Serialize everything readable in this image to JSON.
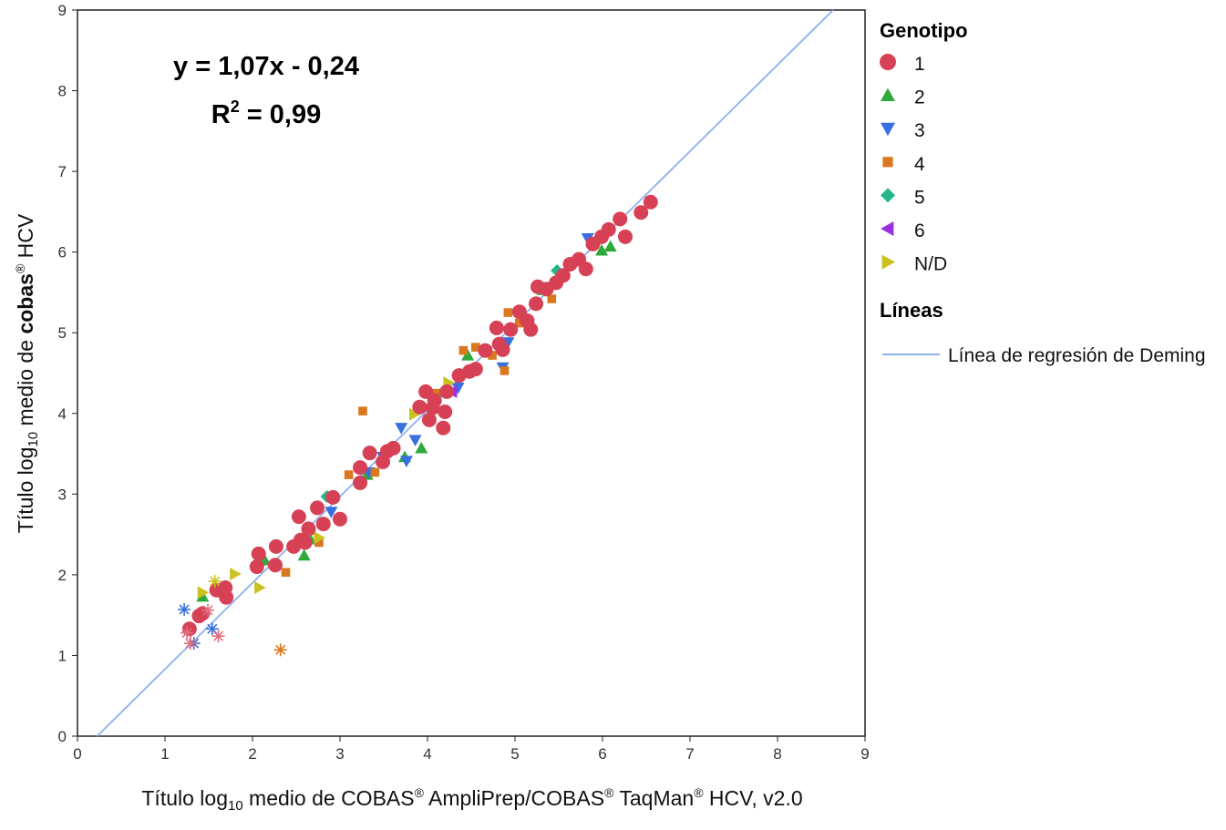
{
  "chart_data": {
    "type": "scatter",
    "xlabel": {
      "pre": "Título log",
      "sub": "10",
      "post": " medio de COBAS",
      "sup1": "®",
      "mid": " AmpliPrep/COBAS",
      "sup2": "®",
      "mid2": " TaqMan",
      "sup3": "®",
      "end": " HCV, v2.0"
    },
    "ylabel": {
      "pre": "Título log",
      "sub": "10",
      "mid": " medio de ",
      "bold": "cobas",
      "sup": "®",
      "end": " HCV"
    },
    "xlim": [
      0,
      9
    ],
    "ylim": [
      0,
      9
    ],
    "xticks": [
      "0",
      "1",
      "2",
      "3",
      "4",
      "5",
      "6",
      "7",
      "8",
      "9"
    ],
    "yticks": [
      "0",
      "1",
      "2",
      "3",
      "4",
      "5",
      "6",
      "7",
      "8",
      "9"
    ],
    "annotations": {
      "equation": "y = 1,07x - 0,24",
      "r2_label": "R",
      "r2_sup": "2",
      "r2_value": " = 0,99"
    },
    "regression": {
      "slope": 1.07,
      "intercept": -0.24,
      "color": "#8fb0ee"
    },
    "legend": {
      "placement": "right",
      "genotype_title": "Genotipo",
      "lines_title": "Líneas",
      "line_label": "Línea de regresión de Deming"
    },
    "series": [
      {
        "name": "1",
        "marker": "circle",
        "color": "#d64155",
        "points": [
          [
            1.28,
            1.33
          ],
          [
            1.39,
            1.49
          ],
          [
            1.43,
            1.52
          ],
          [
            1.59,
            1.81
          ],
          [
            1.69,
            1.84
          ],
          [
            1.7,
            1.72
          ],
          [
            2.07,
            2.26
          ],
          [
            2.05,
            2.1
          ],
          [
            2.27,
            2.35
          ],
          [
            2.26,
            2.12
          ],
          [
            2.47,
            2.35
          ],
          [
            2.55,
            2.43
          ],
          [
            2.53,
            2.72
          ],
          [
            2.74,
            2.83
          ],
          [
            2.92,
            2.96
          ],
          [
            3.0,
            2.69
          ],
          [
            2.64,
            2.57
          ],
          [
            2.81,
            2.63
          ],
          [
            2.6,
            2.4
          ],
          [
            3.23,
            3.14
          ],
          [
            3.23,
            3.33
          ],
          [
            3.34,
            3.51
          ],
          [
            3.54,
            3.53
          ],
          [
            3.61,
            3.57
          ],
          [
            3.49,
            3.4
          ],
          [
            3.91,
            4.08
          ],
          [
            4.06,
            4.07
          ],
          [
            4.02,
            3.92
          ],
          [
            4.18,
            3.82
          ],
          [
            4.08,
            4.16
          ],
          [
            4.2,
            4.02
          ],
          [
            4.22,
            4.27
          ],
          [
            3.98,
            4.27
          ],
          [
            4.36,
            4.47
          ],
          [
            4.48,
            4.52
          ],
          [
            4.55,
            4.55
          ],
          [
            4.66,
            4.78
          ],
          [
            4.82,
            4.86
          ],
          [
            4.86,
            4.79
          ],
          [
            4.79,
            5.06
          ],
          [
            4.95,
            5.04
          ],
          [
            5.05,
            5.26
          ],
          [
            5.14,
            5.15
          ],
          [
            5.18,
            5.04
          ],
          [
            5.24,
            5.36
          ],
          [
            5.26,
            5.57
          ],
          [
            5.36,
            5.54
          ],
          [
            5.47,
            5.62
          ],
          [
            5.55,
            5.71
          ],
          [
            5.63,
            5.85
          ],
          [
            5.73,
            5.91
          ],
          [
            5.81,
            5.79
          ],
          [
            5.89,
            6.1
          ],
          [
            5.99,
            6.19
          ],
          [
            6.07,
            6.28
          ],
          [
            6.2,
            6.41
          ],
          [
            6.26,
            6.19
          ],
          [
            6.44,
            6.49
          ],
          [
            6.55,
            6.62
          ]
        ]
      },
      {
        "name": "2",
        "marker": "triangle-up",
        "color": "#2eaa3a",
        "points": [
          [
            1.43,
            1.73
          ],
          [
            2.14,
            2.18
          ],
          [
            2.59,
            2.24
          ],
          [
            2.66,
            2.44
          ],
          [
            3.31,
            3.24
          ],
          [
            3.74,
            3.46
          ],
          [
            3.93,
            3.57
          ],
          [
            4.18,
            4.27
          ],
          [
            4.46,
            4.72
          ],
          [
            5.32,
            5.53
          ],
          [
            5.99,
            6.02
          ],
          [
            6.09,
            6.07
          ]
        ]
      },
      {
        "name": "3",
        "marker": "triangle-down",
        "color": "#3a6fe0",
        "points": [
          [
            2.9,
            2.78
          ],
          [
            3.33,
            3.27
          ],
          [
            3.49,
            3.46
          ],
          [
            3.7,
            3.82
          ],
          [
            3.76,
            3.41
          ],
          [
            3.86,
            3.67
          ],
          [
            4.35,
            4.32
          ],
          [
            4.86,
            4.57
          ],
          [
            4.92,
            4.88
          ],
          [
            5.83,
            6.17
          ]
        ]
      },
      {
        "name": "4",
        "marker": "square",
        "color": "#d9781f",
        "points": [
          [
            2.38,
            2.03
          ],
          [
            2.67,
            2.55
          ],
          [
            2.76,
            2.4
          ],
          [
            3.1,
            3.24
          ],
          [
            3.26,
            4.03
          ],
          [
            3.4,
            3.27
          ],
          [
            4.09,
            4.25
          ],
          [
            4.41,
            4.78
          ],
          [
            4.55,
            4.82
          ],
          [
            4.74,
            4.72
          ],
          [
            4.88,
            4.53
          ],
          [
            4.92,
            5.25
          ],
          [
            5.05,
            5.12
          ],
          [
            5.42,
            5.42
          ]
        ]
      },
      {
        "name": "5",
        "marker": "diamond",
        "color": "#24b58b",
        "points": [
          [
            2.85,
            2.97
          ],
          [
            5.48,
            5.77
          ]
        ]
      },
      {
        "name": "6",
        "marker": "triangle-left",
        "color": "#9b30e0",
        "points": [
          [
            4.28,
            4.27
          ]
        ]
      },
      {
        "name": "N/D",
        "marker": "triangle-right",
        "color": "#c9c21f",
        "points": [
          [
            1.43,
            1.78
          ],
          [
            1.8,
            2.01
          ],
          [
            2.08,
            1.84
          ],
          [
            2.76,
            2.46
          ],
          [
            3.85,
            3.99
          ],
          [
            4.24,
            4.38
          ]
        ]
      }
    ],
    "asterisk_points": [
      {
        "color": "#3a6fe0",
        "points": [
          [
            1.22,
            1.57
          ],
          [
            1.33,
            1.15
          ],
          [
            1.54,
            1.33
          ]
        ]
      },
      {
        "color": "#e0707e",
        "points": [
          [
            1.25,
            1.28
          ],
          [
            1.49,
            1.56
          ],
          [
            1.61,
            1.24
          ],
          [
            1.29,
            1.15
          ]
        ]
      },
      {
        "color": "#c9c21f",
        "points": [
          [
            1.57,
            1.92
          ]
        ]
      },
      {
        "color": "#d9781f",
        "points": [
          [
            2.32,
            1.07
          ]
        ]
      }
    ]
  }
}
